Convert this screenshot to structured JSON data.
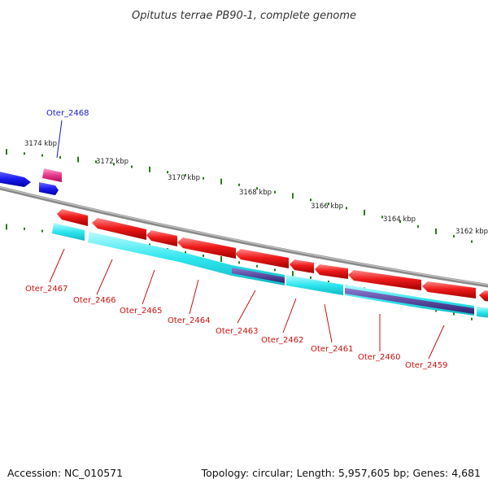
{
  "title": "Opitutus terrae PB90-1, complete genome",
  "footer": {
    "accession": "Accession: NC_010571",
    "summary": "Topology: circular; Length: 5,957,605 bp; Genes: 4,681"
  },
  "scale_labels": [
    "3174 kbp",
    "3172 kbp",
    "3170 kbp",
    "3168 kbp",
    "3166 kbp",
    "3164 kbp",
    "3162 kbp"
  ],
  "genes": [
    {
      "label": "Oter_2468",
      "strand": "top"
    },
    {
      "label": "Oter_2467",
      "strand": "bottom"
    },
    {
      "label": "Oter_2466",
      "strand": "bottom"
    },
    {
      "label": "Oter_2465",
      "strand": "bottom"
    },
    {
      "label": "Oter_2464",
      "strand": "bottom"
    },
    {
      "label": "Oter_2463",
      "strand": "bottom"
    },
    {
      "label": "Oter_2462",
      "strand": "bottom"
    },
    {
      "label": "Oter_2461",
      "strand": "bottom"
    },
    {
      "label": "Oter_2460",
      "strand": "bottom"
    },
    {
      "label": "Oter_2459",
      "strand": "bottom"
    }
  ],
  "colors": {
    "forward_gene": "#1a1aee",
    "forward_rna": "#e8388a",
    "reverse_gene": "#e01010",
    "reverse_feature": "#22e0e8",
    "reverse_feature_dark": "#4a3a8c",
    "backbone": "#8a8a8a",
    "ticks": "#2a7a1a",
    "label_forward": "#1a1acc",
    "label_reverse": "#cc1010"
  }
}
